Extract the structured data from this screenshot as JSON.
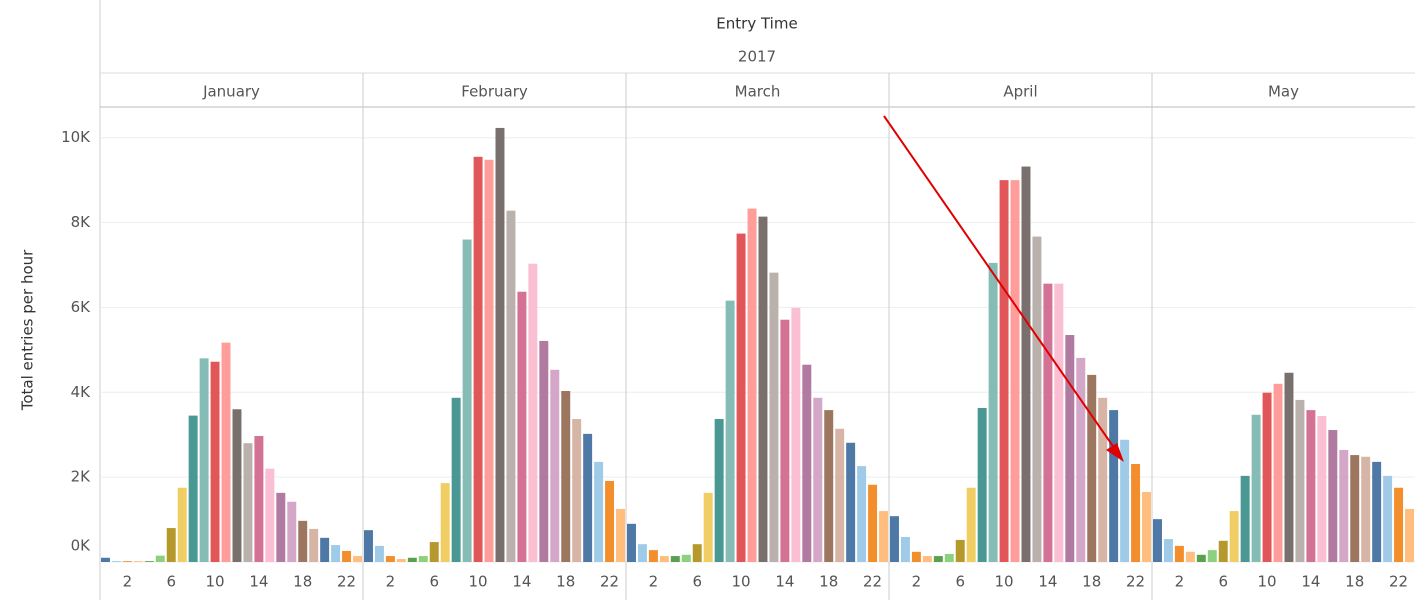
{
  "chart_data": {
    "type": "bar",
    "title": "Entry Time",
    "subtitle": "2017",
    "ylabel": "Total entries per hour",
    "categories": [
      null,
      null,
      "2",
      null,
      null,
      null,
      "6",
      null,
      null,
      null,
      "10",
      null,
      null,
      null,
      "14",
      null,
      null,
      null,
      "18",
      null,
      null,
      null,
      "22",
      null
    ],
    "colors": [
      "#4e79a7",
      "#a0cbe8",
      "#f28e2b",
      "#ffbe7d",
      "#59a14f",
      "#8cd17d",
      "#b6992d",
      "#f1ce63",
      "#499894",
      "#86bcb6",
      "#e15759",
      "#ff9d9a",
      "#79706e",
      "#bab0ac",
      "#d37295",
      "#fabfd2",
      "#b07aa1",
      "#d4a6c8",
      "#9d7660",
      "#d7b5a6",
      "#4e79a7",
      "#a0cbe8",
      "#f28e2b",
      "#ffbe7d"
    ],
    "series": [
      {
        "name": "January",
        "values": [
          100,
          20,
          20,
          20,
          20,
          150,
          800,
          1750,
          3450,
          4800,
          4720,
          5170,
          3600,
          2800,
          2970,
          2200,
          1630,
          1420,
          970,
          780,
          570,
          400,
          260,
          140
        ]
      },
      {
        "name": "February",
        "values": [
          750,
          380,
          140,
          70,
          100,
          140,
          470,
          1860,
          3870,
          7600,
          9550,
          9480,
          10230,
          8280,
          6370,
          7030,
          5210,
          4530,
          4030,
          3370,
          3020,
          2360,
          1910,
          1250
        ]
      },
      {
        "name": "March",
        "values": [
          900,
          420,
          280,
          140,
          140,
          170,
          420,
          1630,
          3370,
          6160,
          7740,
          8330,
          8140,
          6820,
          5710,
          5990,
          4650,
          3870,
          3580,
          3140,
          2810,
          2260,
          1820,
          1200
        ]
      },
      {
        "name": "April",
        "values": [
          1080,
          590,
          240,
          140,
          140,
          190,
          520,
          1750,
          3630,
          7050,
          9000,
          9000,
          9320,
          7670,
          6560,
          6560,
          5350,
          4810,
          4410,
          3870,
          3580,
          2880,
          2310,
          1650
        ]
      },
      {
        "name": "May",
        "values": [
          1010,
          540,
          380,
          240,
          170,
          280,
          500,
          1200,
          2030,
          3470,
          3990,
          4200,
          4460,
          3820,
          3580,
          3440,
          3110,
          2640,
          2520,
          2480,
          2360,
          2030,
          1750,
          1250
        ]
      }
    ],
    "ylim": [
      0,
      10700
    ],
    "yticks": [
      {
        "value": 0,
        "label": "0K"
      },
      {
        "value": 2000,
        "label": "2K"
      },
      {
        "value": 4000,
        "label": "4K"
      },
      {
        "value": 6000,
        "label": "6K"
      },
      {
        "value": 8000,
        "label": "8K"
      },
      {
        "value": 10000,
        "label": "10K"
      }
    ],
    "grid": true
  }
}
